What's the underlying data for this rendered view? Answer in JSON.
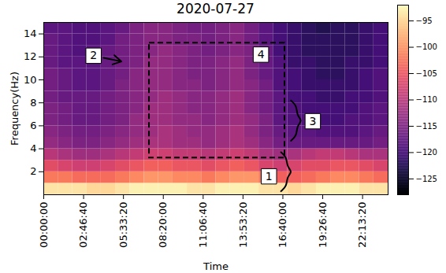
{
  "chart_data": {
    "type": "heatmap",
    "title": "2020-07-27",
    "x_label": "Time",
    "y_label": "Frequency(Hz)",
    "xlim": [
      0,
      86400
    ],
    "ylim": [
      0,
      15
    ],
    "xticks": [
      {
        "value": 0,
        "label": "00:00:00"
      },
      {
        "value": 10000,
        "label": "02:46:40"
      },
      {
        "value": 20000,
        "label": "05:33:20"
      },
      {
        "value": 30000,
        "label": "08:20:00"
      },
      {
        "value": 40000,
        "label": "11:06:40"
      },
      {
        "value": 50000,
        "label": "13:53:20"
      },
      {
        "value": 60000,
        "label": "16:40:00"
      },
      {
        "value": 70000,
        "label": "19:26:40"
      },
      {
        "value": 80000,
        "label": "22:13:20"
      }
    ],
    "yticks": [
      2,
      4,
      6,
      8,
      10,
      12,
      14
    ],
    "color": "magma",
    "heatmap": {
      "x_edges": [
        0,
        3600,
        7200,
        10800,
        14400,
        18000,
        21600,
        25200,
        28800,
        32400,
        36000,
        39600,
        43200,
        46800,
        50400,
        54000,
        57600,
        61200,
        64800,
        68400,
        72000,
        75600,
        79200,
        82800,
        86400
      ],
      "y_edges": [
        0,
        1,
        2,
        3,
        4,
        5,
        6,
        7,
        8,
        9,
        10,
        11,
        12,
        13,
        14,
        15
      ],
      "values": [
        [
          -94,
          -94,
          -94,
          -95,
          -95,
          -94,
          -93,
          -93,
          -93,
          -93,
          -94,
          -94,
          -93,
          -93,
          -93,
          -94,
          -94,
          -95,
          -94,
          -93,
          -93,
          -93,
          -94,
          -94
        ],
        [
          -102,
          -102,
          -103,
          -103,
          -103,
          -102,
          -101,
          -100,
          -100,
          -101,
          -101,
          -102,
          -101,
          -100,
          -100,
          -102,
          -104,
          -104,
          -103,
          -102,
          -101,
          -101,
          -102,
          -103
        ],
        [
          -106,
          -107,
          -108,
          -108,
          -107,
          -106,
          -105,
          -104,
          -104,
          -105,
          -105,
          -106,
          -105,
          -104,
          -105,
          -107,
          -108,
          -107,
          -106,
          -106,
          -105,
          -105,
          -106,
          -107
        ],
        [
          -110,
          -111,
          -112,
          -112,
          -111,
          -110,
          -109,
          -108,
          -108,
          -109,
          -109,
          -110,
          -109,
          -108,
          -109,
          -111,
          -112,
          -111,
          -110,
          -109,
          -109,
          -110,
          -111,
          -111
        ],
        [
          -113,
          -114,
          -115,
          -115,
          -114,
          -113,
          -112,
          -111,
          -111,
          -112,
          -112,
          -113,
          -112,
          -111,
          -112,
          -114,
          -116,
          -117,
          -117,
          -117,
          -117,
          -117,
          -117,
          -116
        ],
        [
          -114,
          -115,
          -116,
          -116,
          -115,
          -114,
          -113,
          -112,
          -111,
          -112,
          -113,
          -113,
          -112,
          -111,
          -113,
          -115,
          -117,
          -118,
          -118,
          -119,
          -119,
          -119,
          -118,
          -117
        ],
        [
          -115,
          -116,
          -117,
          -117,
          -116,
          -115,
          -113,
          -112,
          -112,
          -113,
          -113,
          -114,
          -113,
          -112,
          -113,
          -115,
          -118,
          -119,
          -119,
          -120,
          -120,
          -119,
          -119,
          -118
        ],
        [
          -115,
          -116,
          -117,
          -117,
          -116,
          -115,
          -114,
          -112,
          -112,
          -113,
          -114,
          -114,
          -113,
          -112,
          -114,
          -116,
          -118,
          -119,
          -120,
          -120,
          -120,
          -120,
          -119,
          -118
        ],
        [
          -116,
          -117,
          -117,
          -117,
          -116,
          -115,
          -114,
          -113,
          -112,
          -113,
          -114,
          -114,
          -113,
          -112,
          -114,
          -116,
          -118,
          -120,
          -120,
          -121,
          -121,
          -120,
          -120,
          -119
        ],
        [
          -116,
          -117,
          -118,
          -118,
          -117,
          -115,
          -114,
          -113,
          -113,
          -114,
          -114,
          -115,
          -114,
          -113,
          -114,
          -116,
          -119,
          -120,
          -121,
          -121,
          -121,
          -121,
          -120,
          -119
        ],
        [
          -116,
          -117,
          -118,
          -118,
          -117,
          -116,
          -114,
          -113,
          -113,
          -114,
          -115,
          -115,
          -114,
          -113,
          -115,
          -117,
          -119,
          -120,
          -121,
          -122,
          -122,
          -121,
          -120,
          -119
        ],
        [
          -117,
          -118,
          -118,
          -118,
          -117,
          -116,
          -115,
          -113,
          -113,
          -114,
          -115,
          -115,
          -114,
          -113,
          -115,
          -117,
          -119,
          -121,
          -121,
          -122,
          -122,
          -121,
          -121,
          -120
        ],
        [
          -117,
          -118,
          -119,
          -118,
          -117,
          -116,
          -115,
          -114,
          -113,
          -114,
          -115,
          -116,
          -115,
          -114,
          -115,
          -117,
          -120,
          -121,
          -122,
          -122,
          -122,
          -122,
          -121,
          -120
        ],
        [
          -117,
          -118,
          -119,
          -119,
          -118,
          -116,
          -115,
          -114,
          -114,
          -115,
          -115,
          -116,
          -115,
          -114,
          -116,
          -118,
          -120,
          -121,
          -122,
          -122,
          -122,
          -122,
          -121,
          -120
        ],
        [
          -118,
          -118,
          -119,
          -119,
          -118,
          -117,
          -115,
          -114,
          -114,
          -115,
          -116,
          -116,
          -115,
          -114,
          -116,
          -118,
          -120,
          -121,
          -122,
          -123,
          -122,
          -122,
          -121,
          -120
        ]
      ]
    },
    "colorbar": {
      "range": [
        -128,
        -92
      ],
      "ticks": [
        -125,
        -120,
        -115,
        -110,
        -105,
        -100,
        -95
      ]
    },
    "annotations": [
      {
        "text": "1",
        "x": 56500,
        "y": 1.6,
        "bracket": {
          "x": 61000,
          "y1": 0.3,
          "y2": 3.7
        }
      },
      {
        "text": "2",
        "x": 12500,
        "y": 12.1,
        "arrow": {
          "x": 19500,
          "y": 11.6
        }
      },
      {
        "text": "3",
        "x": 67500,
        "y": 6.4,
        "bracket": {
          "x": 63500,
          "y1": 4.7,
          "y2": 8.2
        }
      },
      {
        "text": "4",
        "x": 54500,
        "y": 12.2,
        "rect": {
          "x1": 26500,
          "x2": 60500,
          "y1": 3.2,
          "y2": 13.2
        }
      }
    ]
  }
}
